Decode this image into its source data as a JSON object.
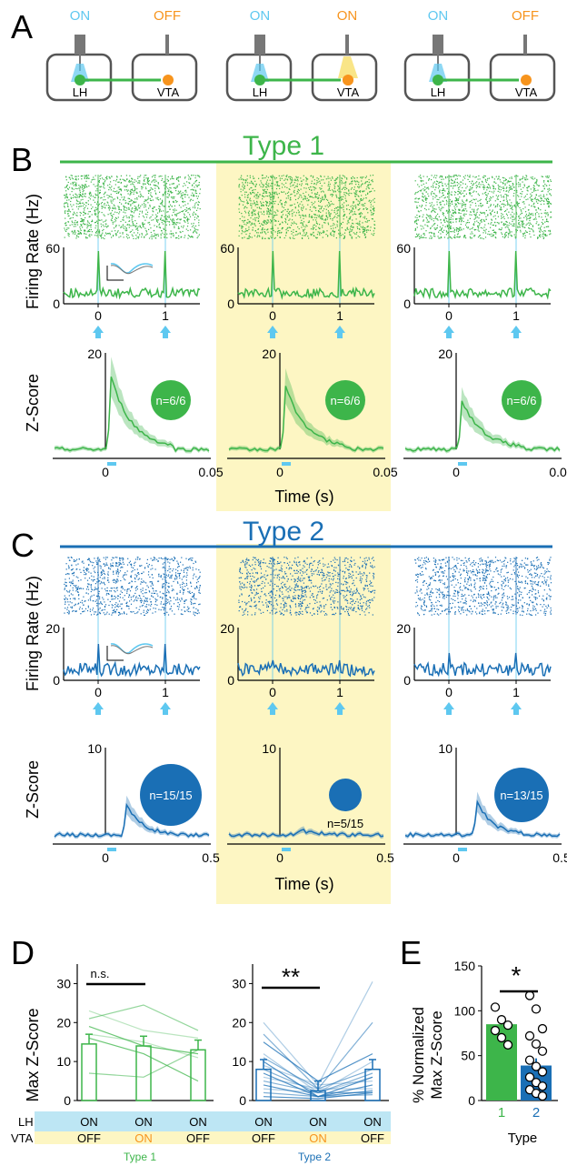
{
  "panels": {
    "A": "A",
    "B": "B",
    "C": "C",
    "D": "D",
    "E": "E"
  },
  "colors": {
    "type1": "#3db54a",
    "type2": "#1a6fb5",
    "light_blue": "#5ec8f0",
    "orange": "#f7941d",
    "yellow_bg": "#fdf6c3",
    "gray": "#808080"
  },
  "panel_a": {
    "columns": [
      {
        "lh_state": "ON",
        "vta_state": "OFF"
      },
      {
        "lh_state": "ON",
        "vta_state": "ON"
      },
      {
        "lh_state": "ON",
        "vta_state": "OFF"
      }
    ],
    "lh_label": "LH",
    "vta_label": "VTA"
  },
  "panel_b": {
    "title": "Type 1",
    "ylabel_rate": "Firing Rate (Hz)",
    "ylabel_z": "Z-Score",
    "rate_ticks": [
      "0",
      "60"
    ],
    "time_ticks": [
      "0",
      "1"
    ],
    "z_top": "20",
    "z_xticks": [
      "0",
      "0.05"
    ],
    "xlabel": "Time (s)",
    "counts": [
      "n=6/6",
      "n=6/6",
      "n=6/6"
    ]
  },
  "panel_c": {
    "title": "Type 2",
    "ylabel_rate": "Firing Rate (Hz)",
    "ylabel_z": "Z-Score",
    "rate_ticks": [
      "0",
      "20"
    ],
    "time_ticks": [
      "0",
      "1"
    ],
    "z_top": "10",
    "z_xticks": [
      "0",
      "0.5"
    ],
    "xlabel": "Time (s)",
    "counts": [
      "n=15/15",
      "n=5/15",
      "n=13/15"
    ]
  },
  "panel_d": {
    "ylabel": "Max Z-Score",
    "yticks": [
      "0",
      "10",
      "20",
      "30"
    ],
    "sig1": "n.s.",
    "sig2": "**",
    "row_lh": "LH",
    "row_vta": "VTA",
    "lh_states": [
      "ON",
      "ON",
      "ON",
      "ON",
      "ON",
      "ON"
    ],
    "vta_states": [
      "OFF",
      "ON",
      "OFF",
      "OFF",
      "ON",
      "OFF"
    ],
    "group1": "Type 1",
    "group2": "Type 2"
  },
  "panel_e": {
    "ylabel1": "% Normalized",
    "ylabel2": "Max Z-Score",
    "yticks": [
      "0",
      "50",
      "100",
      "150"
    ],
    "xticks": [
      "1",
      "2"
    ],
    "xlabel": "Type",
    "sig": "*"
  },
  "chart_data": [
    {
      "type": "bar",
      "title": "",
      "ylabel": "Max Z-Score",
      "ylim": [
        0,
        35
      ],
      "categories": [
        "LH ON / VTA OFF",
        "LH ON / VTA ON",
        "LH ON / VTA OFF"
      ],
      "series": [
        {
          "name": "Type 1",
          "values": [
            14.5,
            14,
            13
          ]
        },
        {
          "name": "Type 2",
          "values": [
            8,
            2.5,
            8
          ]
        }
      ],
      "individual_type1": [
        [
          23,
          18,
          16
        ],
        [
          21,
          24.5,
          18
        ],
        [
          19,
          14,
          12
        ],
        [
          17,
          15,
          11
        ],
        [
          7,
          6,
          13
        ],
        [
          16,
          12,
          5
        ]
      ],
      "individual_type2": [
        [
          20,
          4,
          30.5
        ],
        [
          17,
          3,
          20
        ],
        [
          15,
          5,
          12
        ],
        [
          12,
          2,
          10
        ],
        [
          11,
          3,
          8
        ],
        [
          10,
          1,
          6
        ],
        [
          9,
          4,
          5
        ],
        [
          8,
          2,
          7
        ],
        [
          7,
          1,
          4
        ],
        [
          6,
          3,
          3
        ],
        [
          5,
          2,
          2
        ],
        [
          4,
          1,
          2.5
        ],
        [
          3,
          2,
          6
        ],
        [
          2,
          1,
          1.5
        ],
        [
          1,
          0.5,
          2
        ]
      ]
    },
    {
      "type": "bar",
      "title": "",
      "ylabel": "% Normalized Max Z-Score",
      "xlabel": "Type",
      "ylim": [
        0,
        150
      ],
      "categories": [
        "1",
        "2"
      ],
      "values": [
        85,
        39
      ],
      "points_type1": [
        104,
        90,
        84,
        78,
        70,
        62
      ],
      "points_type2": [
        117,
        102,
        80,
        72,
        63,
        55,
        45,
        38,
        32,
        26,
        20,
        16,
        12,
        8,
        5
      ]
    }
  ]
}
